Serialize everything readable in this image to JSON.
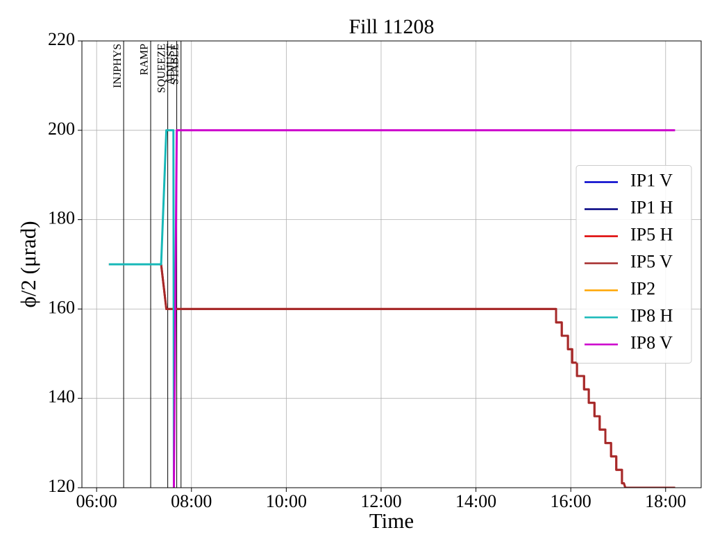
{
  "chart_data": {
    "type": "line",
    "title": "Fill 11208",
    "xlabel": "Time",
    "ylabel": "ϕ/2 (μrad)",
    "xlim": [
      5.69,
      18.75
    ],
    "ylim": [
      120,
      220
    ],
    "xticks": [
      {
        "value": 6,
        "label": "06:00"
      },
      {
        "value": 8,
        "label": "08:00"
      },
      {
        "value": 10,
        "label": "10:00"
      },
      {
        "value": 12,
        "label": "12:00"
      },
      {
        "value": 14,
        "label": "14:00"
      },
      {
        "value": 16,
        "label": "16:00"
      },
      {
        "value": 18,
        "label": "18:00"
      }
    ],
    "yticks": [
      120,
      140,
      160,
      180,
      200,
      220
    ],
    "grid": true,
    "legend": "center right",
    "markers": [
      {
        "label": "INJPHYS",
        "x": 6.57
      },
      {
        "label": "RAMP",
        "x": 7.14
      },
      {
        "label": "SQUEEZE",
        "x": 7.5
      },
      {
        "label": "ADJUST",
        "x": 7.69
      },
      {
        "label": "STABLE",
        "x": 7.78
      }
    ],
    "series": [
      {
        "name": "IP1 V",
        "color": "#0000cc",
        "x": [],
        "values": []
      },
      {
        "name": "IP1 H",
        "color": "#000080",
        "x": [],
        "values": []
      },
      {
        "name": "IP5 H",
        "color": "#dd0000",
        "x": [
          6.26,
          7.36,
          7.47,
          15.69,
          15.69,
          15.81,
          15.81,
          15.94,
          15.94,
          16.03,
          16.03,
          16.13,
          16.13,
          16.28,
          16.28,
          16.38,
          16.38,
          16.5,
          16.5,
          16.61,
          16.61,
          16.73,
          16.73,
          16.85,
          16.85,
          16.96,
          16.96,
          17.08,
          17.08,
          17.12,
          17.15,
          18.2
        ],
        "values": [
          170,
          170,
          160,
          160,
          157,
          157,
          154,
          154,
          151,
          151,
          148,
          148,
          145,
          145,
          142,
          142,
          139,
          139,
          136,
          136,
          133,
          133,
          130,
          130,
          127,
          127,
          124,
          124,
          121,
          121,
          120,
          120
        ]
      },
      {
        "name": "IP5 V",
        "color": "#a52a2a",
        "x": [
          6.26,
          7.36,
          7.47,
          15.69,
          15.69,
          15.81,
          15.81,
          15.94,
          15.94,
          16.03,
          16.03,
          16.13,
          16.13,
          16.28,
          16.28,
          16.38,
          16.38,
          16.5,
          16.5,
          16.61,
          16.61,
          16.73,
          16.73,
          16.85,
          16.85,
          16.96,
          16.96,
          17.08,
          17.08,
          17.12,
          17.15,
          18.2
        ],
        "values": [
          170,
          170,
          160,
          160,
          157,
          157,
          154,
          154,
          151,
          151,
          148,
          148,
          145,
          145,
          142,
          142,
          139,
          139,
          136,
          136,
          133,
          133,
          130,
          130,
          127,
          127,
          124,
          124,
          121,
          121,
          120,
          120
        ]
      },
      {
        "name": "IP2",
        "color": "#ffa500",
        "x": [],
        "values": []
      },
      {
        "name": "IP8 H",
        "color": "#17b8b8",
        "x": [
          6.26,
          7.36,
          7.47,
          7.62,
          7.63
        ],
        "values": [
          170,
          170,
          200,
          200,
          120
        ]
      },
      {
        "name": "IP8 V",
        "color": "#cc00cc",
        "x": [
          7.63,
          7.69,
          18.2
        ],
        "values": [
          120,
          200,
          200
        ]
      }
    ]
  }
}
